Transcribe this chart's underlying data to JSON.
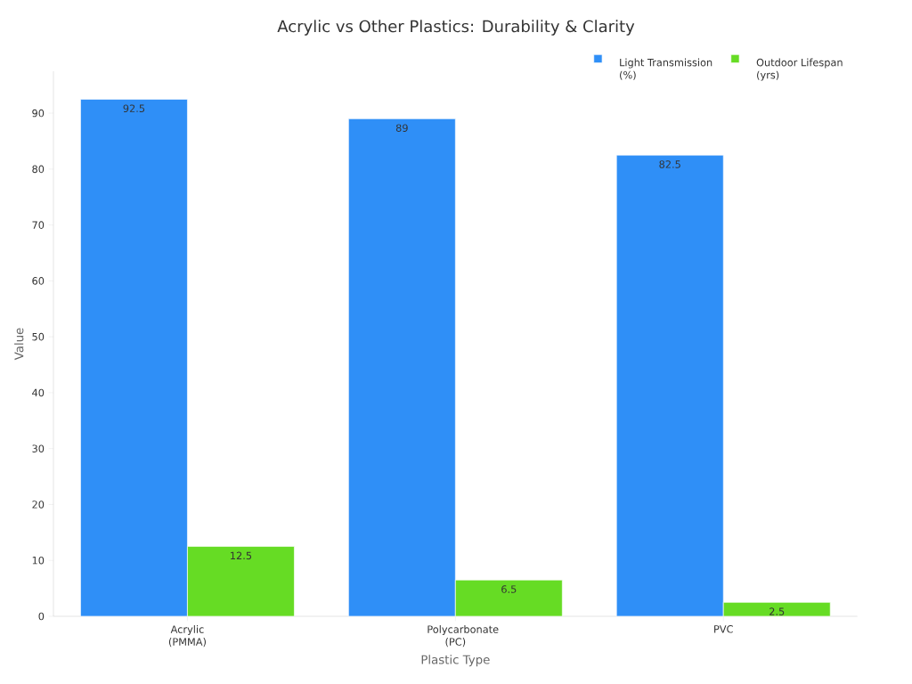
{
  "chart_data": {
    "type": "bar",
    "title": "Acrylic vs Other Plastics: Durability & Clarity",
    "xlabel": "Plastic Type",
    "ylabel": "Value",
    "categories": [
      "Acrylic (PMMA)",
      "Polycarbonate (PC)",
      "PVC"
    ],
    "series": [
      {
        "name": "Light Transmission (%)",
        "color": "#2f8ff7",
        "values": [
          92.5,
          89,
          82.5
        ]
      },
      {
        "name": "Outdoor Lifespan (yrs)",
        "color": "#66dc24",
        "values": [
          12.5,
          6.5,
          2.5
        ]
      }
    ],
    "ylim": [
      0,
      97.5
    ],
    "yticks": [
      0,
      10,
      20,
      30,
      40,
      50,
      60,
      70,
      80,
      90
    ],
    "data_labels": true,
    "legend": "top right",
    "grid": false
  }
}
